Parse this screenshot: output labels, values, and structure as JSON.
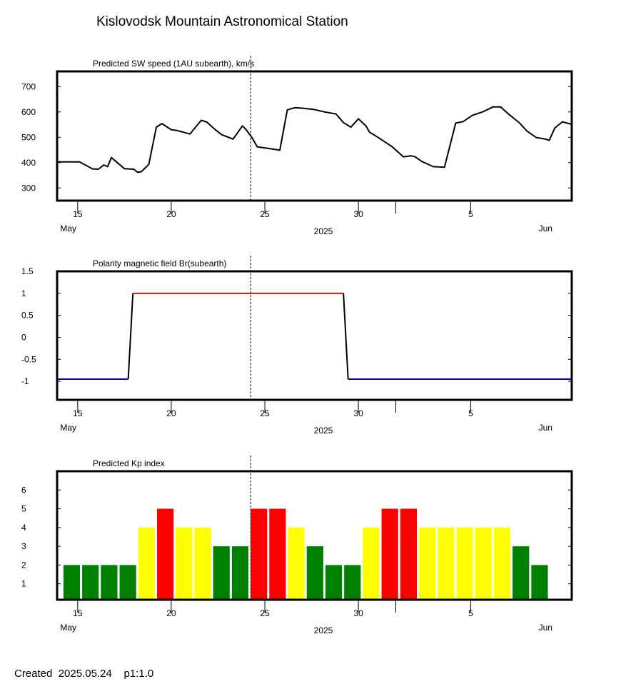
{
  "title": "Kislovodsk Mountain Astronomical Station",
  "footer": {
    "created_label": "Created",
    "date": "2025.05.24",
    "page": "p1:1.0"
  },
  "colors": {
    "positive": "#ff0000",
    "negative": "#0000c0",
    "kp_low": "#008000",
    "kp_mid": "#ffff00",
    "kp_high": "#ff0000"
  },
  "date_axis": {
    "start_day": 13.9,
    "end_day": 41.4,
    "now_day": 24.25,
    "tick_days": [
      15,
      20,
      25,
      30,
      32,
      36
    ],
    "tick_labels": [
      {
        "day": 15,
        "text": "15"
      },
      {
        "day": 20,
        "text": "20"
      },
      {
        "day": 25,
        "text": "25"
      },
      {
        "day": 30,
        "text": "30"
      },
      {
        "day": 36,
        "text": "5"
      }
    ],
    "month_labels": [
      {
        "day": 14.5,
        "text": "May"
      },
      {
        "day": 40.0,
        "text": "Jun"
      }
    ],
    "year_label": "2025"
  },
  "chart_data": [
    {
      "type": "line",
      "title": "Predicted SW speed (1AU subearth), km/s",
      "ylim": [
        250,
        760
      ],
      "yticks": [
        300,
        400,
        500,
        600,
        700
      ],
      "x": [
        13.9,
        15.1,
        15.5,
        15.8,
        16.1,
        16.4,
        16.6,
        16.8,
        17.5,
        18.0,
        18.2,
        18.4,
        18.8,
        19.2,
        19.5,
        20.0,
        20.3,
        21.0,
        21.6,
        21.9,
        22.4,
        22.7,
        23.3,
        23.8,
        24.0,
        24.3,
        24.6,
        25.2,
        25.8,
        26.2,
        26.6,
        27.0,
        27.6,
        28.2,
        28.8,
        29.2,
        29.6,
        30.0,
        30.4,
        30.6,
        31.0,
        31.8,
        32.4,
        32.8,
        33.0,
        33.4,
        34.0,
        34.6,
        35.2,
        35.6,
        35.8,
        36.1,
        36.6,
        37.2,
        37.6,
        38.0,
        38.6,
        39.0,
        39.5,
        40.0,
        40.2,
        40.5,
        40.9,
        41.4
      ],
      "values": [
        403,
        403,
        387,
        375,
        374,
        391,
        384,
        420,
        376,
        374,
        362,
        364,
        393,
        540,
        554,
        530,
        527,
        513,
        567,
        560,
        527,
        510,
        493,
        545,
        530,
        500,
        462,
        456,
        449,
        608,
        617,
        615,
        610,
        600,
        592,
        558,
        540,
        573,
        545,
        520,
        502,
        463,
        423,
        427,
        424,
        404,
        384,
        382,
        556,
        562,
        572,
        587,
        599,
        620,
        620,
        593,
        557,
        525,
        499,
        493,
        488,
        537,
        561,
        551
      ],
      "notes": ""
    },
    {
      "type": "line",
      "title": "Polarity magnetic field  Br(subearth)",
      "ylim": [
        -1.42,
        1.5
      ],
      "yticks": [
        -1,
        -0.5,
        0,
        0.5,
        1,
        1.5
      ],
      "ytick_labels": [
        "-1",
        "-0.5",
        "0",
        "0.5",
        "1",
        "1.5"
      ],
      "x": [
        13.9,
        17.7,
        17.95,
        29.2,
        29.45,
        41.4
      ],
      "values": [
        -0.95,
        -0.95,
        1.0,
        1.0,
        -0.95,
        -0.95
      ]
    },
    {
      "type": "bar",
      "title": "Predicted Kp index",
      "ylim": [
        0.15,
        7.0
      ],
      "yticks": [
        1,
        2,
        3,
        4,
        5,
        6
      ],
      "bar_start_day": 14.2,
      "bar_width_day": 1.0,
      "values": [
        2,
        2,
        2,
        2,
        4,
        5,
        4,
        4,
        3,
        3,
        5,
        5,
        4,
        3,
        2,
        2,
        4,
        5,
        5,
        4,
        4,
        4,
        4,
        4,
        3,
        2
      ]
    }
  ]
}
